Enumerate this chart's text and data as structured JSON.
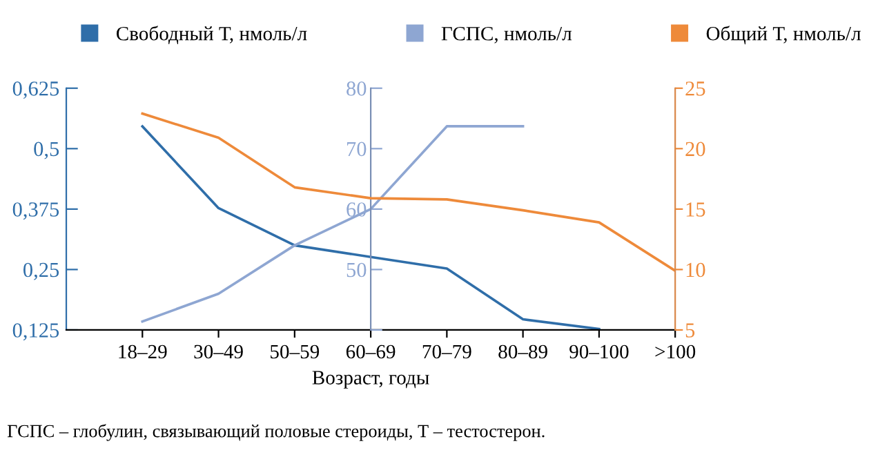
{
  "chart_data": {
    "type": "line",
    "xlabel": "Возраст, годы",
    "categories": [
      "18–29",
      "30–49",
      "50–59",
      "60–69",
      "70–79",
      "80–89",
      "90–100",
      ">100"
    ],
    "series": [
      {
        "name": "Свободный Т, нмоль/л",
        "color": "#2f6ea9",
        "axis": "y",
        "values": [
          0.546,
          0.377,
          0.3,
          0.276,
          0.252,
          0.147,
          0.127,
          null
        ]
      },
      {
        "name": "ГСПС, нмоль/л",
        "color": "#8ea6d2",
        "axis": "y2",
        "values": [
          41.4,
          46,
          54,
          60,
          73.7,
          73.7,
          null,
          null
        ]
      },
      {
        "name": "Общий Т, нмоль/л",
        "color": "#ee8a3a",
        "axis": "y3",
        "values": [
          22.9,
          20.9,
          16.8,
          15.9,
          15.8,
          14.9,
          13.9,
          9.9
        ]
      }
    ],
    "ylim": [
      0.125,
      0.625
    ],
    "yticks": [
      {
        "value": 0.125,
        "label": "0,125"
      },
      {
        "value": 0.25,
        "label": "0,25"
      },
      {
        "value": 0.375,
        "label": "0,375"
      },
      {
        "value": 0.5,
        "label": "0,5"
      },
      {
        "value": 0.625,
        "label": "0,625"
      }
    ],
    "y2lim": [
      40,
      80
    ],
    "y2ticks": [
      {
        "value": 40,
        "label": null
      },
      50,
      60,
      70,
      80
    ],
    "y3lim": [
      5,
      25
    ],
    "y3ticks": [
      5,
      10,
      15,
      20,
      25
    ],
    "legend": "top",
    "grid": false,
    "marker": "none",
    "line_style": "solid",
    "annotations": [
      "ГСПС – глобулин, связывающий половые стероиды, Т – тестостерон."
    ]
  }
}
